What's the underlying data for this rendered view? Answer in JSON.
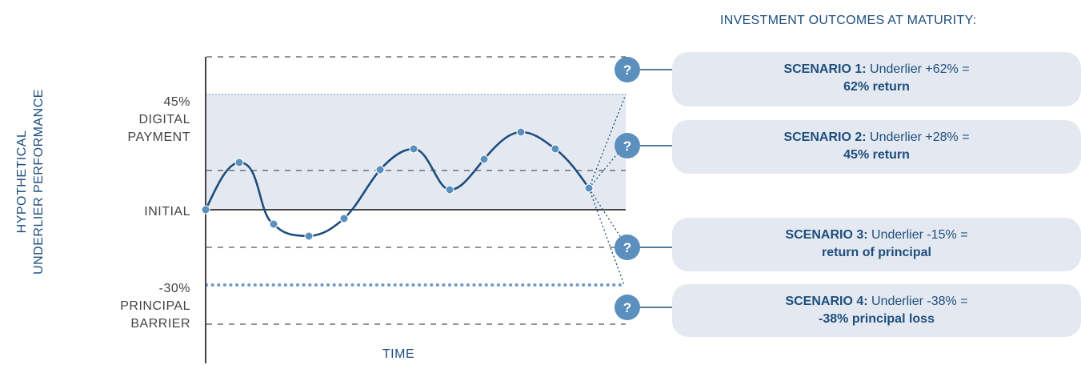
{
  "header": "INVESTMENT OUTCOMES AT MATURITY:",
  "y_axis_label": [
    "HYPOTHETICAL",
    "UNDERLIER PERFORMANCE"
  ],
  "x_axis_label": "TIME",
  "levels": {
    "digital": [
      "45%",
      "DIGITAL",
      "PAYMENT"
    ],
    "initial": "INITIAL",
    "barrier": [
      "-30%",
      "PRINCIPAL",
      "BARRIER"
    ]
  },
  "question_mark": "?",
  "scenarios": [
    {
      "title": "SCENARIO 1:",
      "text": "Underlier +62% =",
      "outcome": "62% return",
      "underlier_change": 62
    },
    {
      "title": "SCENARIO 2:",
      "text": "Underlier +28% =",
      "outcome": "45% return",
      "underlier_change": 28
    },
    {
      "title": "SCENARIO 3:",
      "text": "Underlier -15% =",
      "outcome": "return of principal",
      "underlier_change": -15
    },
    {
      "title": "SCENARIO 4:",
      "text": "Underlier -38% =",
      "outcome": "-38% principal loss",
      "underlier_change": -38
    }
  ],
  "colors": {
    "dark_blue": "#1d4e7e",
    "mid_blue": "#5b8fbe",
    "shade": "#e4e9f1",
    "axis": "#444444"
  }
}
